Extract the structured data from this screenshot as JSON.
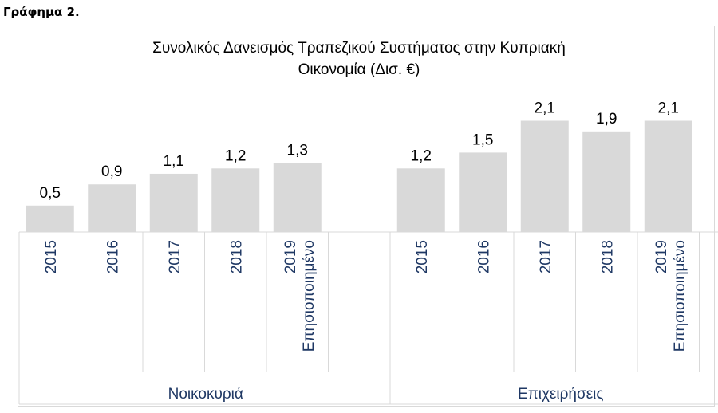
{
  "caption": "Γράφημα 2.",
  "chart_data": {
    "type": "bar",
    "title_lines": [
      "Συνολικός Δανεισμός Τραπεζικού Συστήματος στην Κυπριακή",
      "Οικονομία (Δισ. €)"
    ],
    "groups": [
      {
        "name": "Νοικοκυριά",
        "categories": [
          [
            "2015"
          ],
          [
            "2016"
          ],
          [
            "2017"
          ],
          [
            "2018"
          ],
          [
            "2019",
            "Επησιοποιημένο"
          ]
        ],
        "values": [
          0.5,
          0.9,
          1.1,
          1.2,
          1.3
        ],
        "labels": [
          "0,5",
          "0,9",
          "1,1",
          "1,2",
          "1,3"
        ]
      },
      {
        "name": "Επιχειρήσεις",
        "categories": [
          [
            "2015"
          ],
          [
            "2016"
          ],
          [
            "2017"
          ],
          [
            "2018"
          ],
          [
            "2019",
            "Επησιοποιημένο"
          ]
        ],
        "values": [
          1.2,
          1.5,
          2.1,
          1.9,
          2.1
        ],
        "labels": [
          "1,2",
          "1,5",
          "2,1",
          "1,9",
          "2,1"
        ]
      }
    ],
    "ylim": [
      0,
      2.2
    ],
    "grid": false,
    "colors": {
      "bar": "#d9d9d9",
      "tick_label": "#1f3864",
      "text": "#000000",
      "axis": "#d9d9d9"
    }
  }
}
